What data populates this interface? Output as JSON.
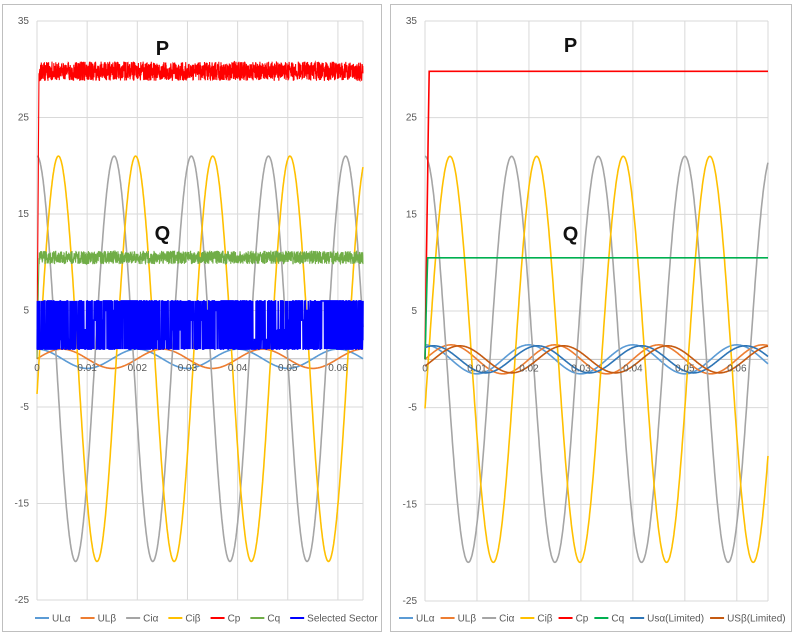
{
  "chart_data": [
    {
      "type": "line",
      "title": "",
      "xlabel": "",
      "ylabel": "",
      "xlim": [
        0,
        0.065
      ],
      "ylim": [
        -25,
        35
      ],
      "y_ticks": [
        "35",
        "25",
        "15",
        "5",
        "-5",
        "-15",
        "-25"
      ],
      "x_ticks": [
        "0",
        "0.01",
        "0.02",
        "0.03",
        "0.04",
        "0.05",
        "0.06"
      ],
      "grid": true,
      "legend_position": "bottom",
      "annotations": [
        {
          "text": "P",
          "x": 0.025,
          "y": 31.5
        },
        {
          "text": "Q",
          "x": 0.025,
          "y": 12.3
        }
      ],
      "series": [
        {
          "name": "ULα",
          "color": "#5b9bd5",
          "kind": "sine",
          "amplitude": 1.0,
          "offset": 0,
          "frequency_hz": 50,
          "phase_deg": 90
        },
        {
          "name": "ULβ",
          "color": "#ed7d31",
          "kind": "sine",
          "amplitude": 1.0,
          "offset": 0,
          "frequency_hz": 50,
          "phase_deg": 0
        },
        {
          "name": "Ciα",
          "color": "#a5a5a5",
          "kind": "sine",
          "amplitude": 21,
          "offset": 0,
          "frequency_hz": 65,
          "phase_deg": 90
        },
        {
          "name": "Ciβ",
          "color": "#ffc000",
          "kind": "sine",
          "amplitude": 21,
          "offset": 0,
          "frequency_hz": 65,
          "phase_deg": -10
        },
        {
          "name": "Cp",
          "color": "#ff0000",
          "kind": "step_noisy",
          "level": 29.8,
          "noise": 1.0,
          "rise_until": 0.0004
        },
        {
          "name": "Cq",
          "color": "#70ad47",
          "kind": "step_noisy",
          "level": 10.5,
          "noise": 0.7,
          "rise_until": 0.0004
        },
        {
          "name": "Selected Sector",
          "color": "#0000ff",
          "kind": "sector_band",
          "low": 1,
          "high": 6
        }
      ]
    },
    {
      "type": "line",
      "title": "",
      "xlabel": "",
      "ylabel": "",
      "xlim": [
        0,
        0.066
      ],
      "ylim": [
        -25,
        35
      ],
      "y_ticks": [
        "35",
        "25",
        "15",
        "5",
        "-5",
        "-15",
        "-25"
      ],
      "x_ticks": [
        "0",
        "0.01",
        "0.02",
        "0.03",
        "0.04",
        "0.05",
        "0.06"
      ],
      "grid": true,
      "legend_position": "bottom",
      "annotations": [
        {
          "text": "P",
          "x": 0.028,
          "y": 31.8
        },
        {
          "text": "Q",
          "x": 0.028,
          "y": 12.3
        }
      ],
      "series": [
        {
          "name": "ULα",
          "color": "#5b9bd5",
          "kind": "sine",
          "amplitude": 1.5,
          "offset": 0,
          "frequency_hz": 50,
          "phase_deg": 90
        },
        {
          "name": "ULβ",
          "color": "#ed7d31",
          "kind": "sine",
          "amplitude": 1.5,
          "offset": 0,
          "frequency_hz": 50,
          "phase_deg": 0
        },
        {
          "name": "Ciα",
          "color": "#a5a5a5",
          "kind": "sine",
          "amplitude": 21,
          "offset": 0,
          "frequency_hz": 60,
          "phase_deg": 90
        },
        {
          "name": "Ciβ",
          "color": "#ffc000",
          "kind": "sine",
          "amplitude": 21,
          "offset": 0,
          "frequency_hz": 60,
          "phase_deg": -14
        },
        {
          "name": "Cp",
          "color": "#ff0000",
          "kind": "step",
          "level": 29.8,
          "rise_until": 0.0008
        },
        {
          "name": "Cq",
          "color": "#00b050",
          "kind": "step",
          "level": 10.5,
          "rise_until": 0.0005
        },
        {
          "name": "Usα(Limited)",
          "color": "#2e75b6",
          "kind": "sine",
          "amplitude": 1.4,
          "offset": 0,
          "frequency_hz": 50,
          "phase_deg": 60
        },
        {
          "name": "USβ(Limited)",
          "color": "#c55a11",
          "kind": "sine",
          "amplitude": 1.4,
          "offset": 0,
          "frequency_hz": 50,
          "phase_deg": -30
        }
      ]
    }
  ]
}
